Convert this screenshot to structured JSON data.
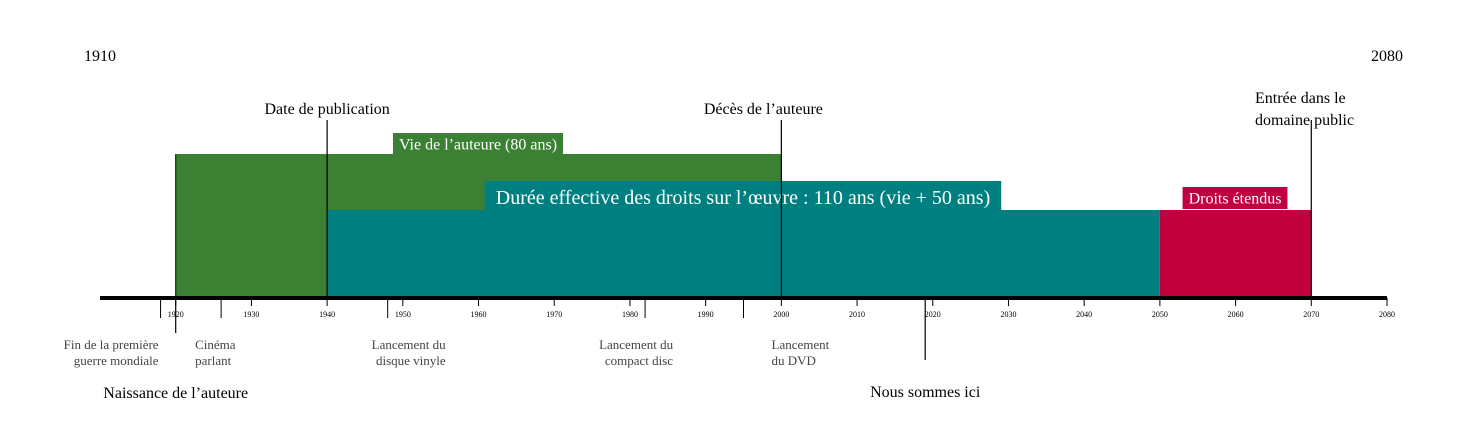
{
  "chart_data": {
    "type": "timeline",
    "range_start_label": "1910",
    "range_end_label": "2080",
    "axis": {
      "min": 1910,
      "max": 2080
    },
    "ticks": [
      1920,
      1930,
      1940,
      1950,
      1960,
      1970,
      1980,
      1990,
      2000,
      2010,
      2020,
      2030,
      2040,
      2050,
      2060,
      2070,
      2080
    ],
    "bars": [
      {
        "id": "author-life",
        "label": "Vie de l’auteure (80 ans)",
        "start": 1920,
        "end": 2000,
        "color": "#3b8033"
      },
      {
        "id": "effective-rights",
        "label": "Durée effective des droits sur l’œuvre : 110 ans (vie + 50 ans)",
        "start": 1940,
        "end": 2050,
        "color": "#007f80"
      },
      {
        "id": "extended-rights",
        "label": "Droits étendus",
        "start": 2050,
        "end": 2070,
        "color": "#c0003f"
      }
    ],
    "upper_events": [
      {
        "id": "publication",
        "label": "Date de publication",
        "year": 1940
      },
      {
        "id": "author-death",
        "label": "Décès de l’auteure",
        "year": 2000
      },
      {
        "id": "public-domain",
        "label_lines": [
          "Entrée dans le",
          "domaine public"
        ],
        "year": 2070
      }
    ],
    "lower_events": [
      {
        "id": "wwi-end",
        "label_lines": [
          "Fin de la première",
          "guerre mondiale"
        ],
        "year": 1918
      },
      {
        "id": "talkies",
        "label_lines": [
          "Cinéma",
          "parlant"
        ],
        "year": 1926
      },
      {
        "id": "vinyl",
        "label_lines": [
          "Lancement du",
          "disque vinyle"
        ],
        "year": 1948
      },
      {
        "id": "cd",
        "label_lines": [
          "Lancement du",
          "compact disc"
        ],
        "year": 1982
      },
      {
        "id": "dvd",
        "label_lines": [
          "Lancement",
          "du DVD"
        ],
        "year": 1995
      }
    ],
    "bottom_labels": {
      "birth": {
        "label": "Naissance de l’auteure",
        "year": 1920
      },
      "now": {
        "label": "Nous sommes ici",
        "year": 2019
      }
    }
  }
}
